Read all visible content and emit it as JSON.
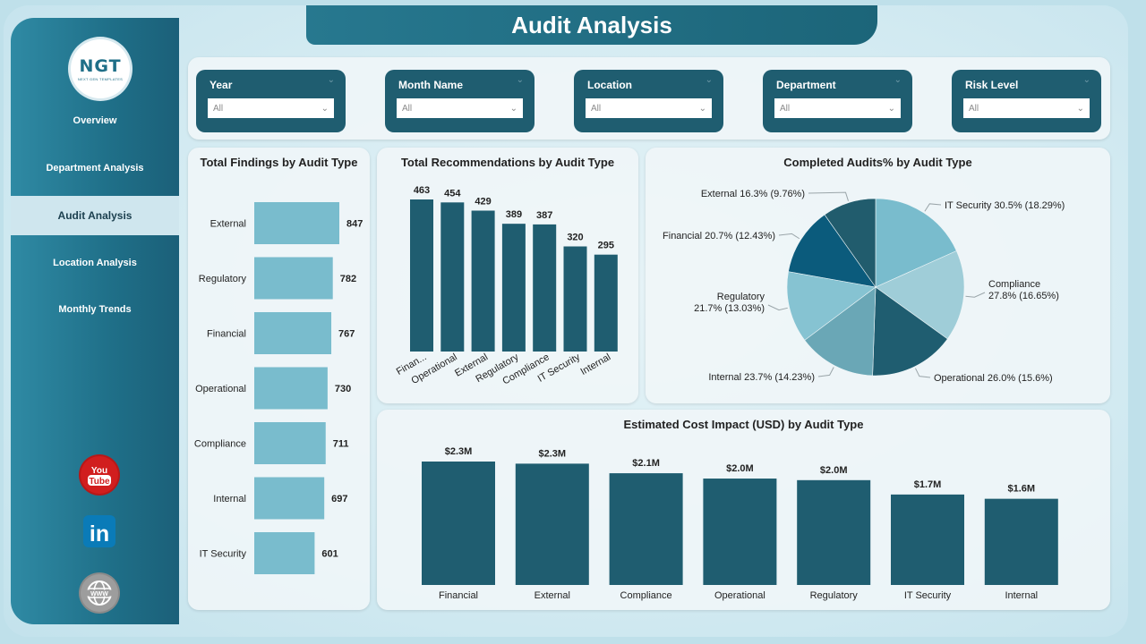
{
  "header": {
    "title": "Audit Analysis"
  },
  "logo": {
    "text": "NGT",
    "tagline": "NEXT GEN TEMPLATES"
  },
  "sidebar": {
    "items": [
      {
        "label": "Overview"
      },
      {
        "label": "Department Analysis"
      },
      {
        "label": "Audit Analysis",
        "active": true
      },
      {
        "label": "Location Analysis"
      },
      {
        "label": "Monthly Trends"
      }
    ],
    "social": {
      "youtube_text": "You Tube",
      "linkedin_text": "in"
    }
  },
  "filters": [
    {
      "label": "Year",
      "value": "All"
    },
    {
      "label": "Month Name",
      "value": "All"
    },
    {
      "label": "Location",
      "value": "All"
    },
    {
      "label": "Department",
      "value": "All"
    },
    {
      "label": "Risk Level",
      "value": "All"
    }
  ],
  "colors": {
    "dark": "#1f5d70",
    "light": "#79bccd",
    "accent": "#27788f"
  },
  "chart_data": [
    {
      "type": "bar",
      "orientation": "horizontal",
      "title": "Total Findings by Audit Type",
      "categories": [
        "External",
        "Regulatory",
        "Financial",
        "Operational",
        "Compliance",
        "Internal",
        "IT Security"
      ],
      "values": [
        847,
        782,
        767,
        730,
        711,
        697,
        601
      ],
      "labels": [
        "847",
        "782",
        "767",
        "730",
        "711",
        "697",
        "601"
      ]
    },
    {
      "type": "bar",
      "title": "Total Recommendations by Audit Type",
      "categories": [
        "Finan...",
        "Operational",
        "External",
        "Regulatory",
        "Compliance",
        "IT Security",
        "Internal"
      ],
      "values": [
        463,
        454,
        429,
        389,
        387,
        320,
        295
      ],
      "labels": [
        "463",
        "454",
        "429",
        "389",
        "387",
        "320",
        "295"
      ]
    },
    {
      "type": "pie",
      "title": "Completed Audits% by Audit Type",
      "slices": [
        {
          "name": "IT Security",
          "value": 18.29,
          "label": "IT Security 30.5% (18.29%)",
          "color": "#79bccd"
        },
        {
          "name": "Compliance",
          "value": 16.65,
          "label": "Compliance",
          "label2": "27.8% (16.65%)",
          "color": "#9fcdd8"
        },
        {
          "name": "Operational",
          "value": 15.6,
          "label": "Operational 26.0% (15.6%)",
          "color": "#1f5d70"
        },
        {
          "name": "Internal",
          "value": 14.23,
          "label": "Internal 23.7% (14.23%)",
          "color": "#6aa7b6"
        },
        {
          "name": "Regulatory",
          "value": 13.03,
          "label": "Regulatory",
          "label2": "21.7% (13.03%)",
          "color": "#86c3d2"
        },
        {
          "name": "Financial",
          "value": 12.43,
          "label": "Financial 20.7% (12.43%)",
          "color": "#0b5b7c"
        },
        {
          "name": "External",
          "value": 9.76,
          "label": "External 16.3% (9.76%)",
          "color": "#215c6d"
        }
      ]
    },
    {
      "type": "bar",
      "title": "Estimated Cost Impact (USD) by Audit Type",
      "categories": [
        "Financial",
        "External",
        "Compliance",
        "Operational",
        "Regulatory",
        "IT Security",
        "Internal"
      ],
      "values": [
        2.32,
        2.28,
        2.1,
        2.0,
        1.97,
        1.7,
        1.62
      ],
      "labels": [
        "$2.3M",
        "$2.3M",
        "$2.1M",
        "$2.0M",
        "$2.0M",
        "$1.7M",
        "$1.6M"
      ]
    }
  ]
}
